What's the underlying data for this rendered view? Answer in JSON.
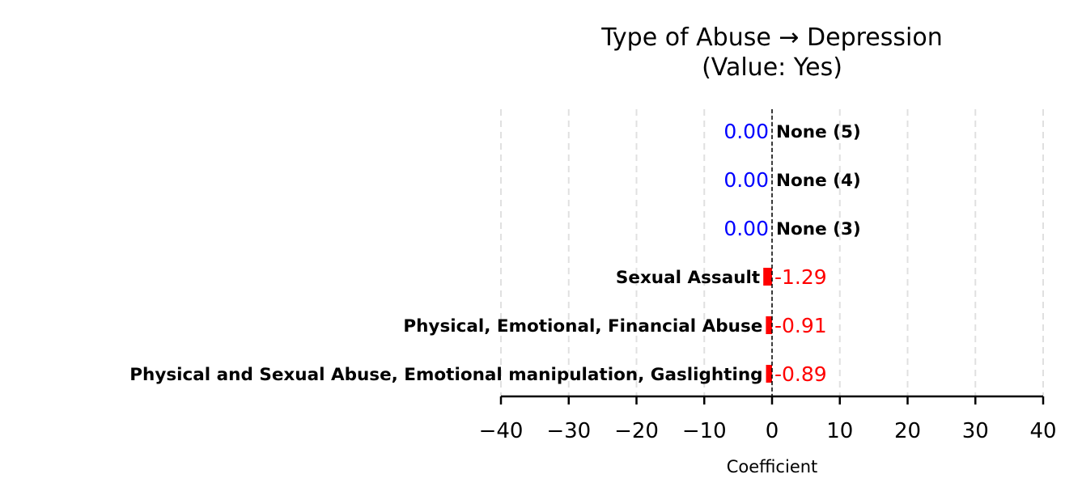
{
  "chart_data": {
    "type": "bar",
    "orientation": "horizontal",
    "title": "Type of Abuse → Depression",
    "subtitle": "(Value: Yes)",
    "xlabel": "Coefficient",
    "ylabel": "",
    "xlim": [
      -40,
      40
    ],
    "xticks": [
      -40,
      -30,
      -20,
      -10,
      0,
      10,
      20,
      30,
      40
    ],
    "xtick_labels": [
      "−40",
      "−30",
      "−20",
      "−10",
      "0",
      "10",
      "20",
      "30",
      "40"
    ],
    "grid": "vertical dashed",
    "zero_line": "dashed",
    "categories": [
      "Physical and Sexual Abuse, Emotional manipulation, Gaslighting",
      "Physical, Emotional, Financial Abuse",
      "Sexual Assault",
      "None (3)",
      "None (4)",
      "None (5)"
    ],
    "values": [
      -0.89,
      -0.91,
      -1.29,
      0.0,
      0.0,
      0.0
    ],
    "value_labels": [
      "-0.89",
      "-0.91",
      "-1.29",
      "0.00",
      "0.00",
      "0.00"
    ],
    "colors": {
      "negative": "#ff0000",
      "zero": "#0000ff",
      "grid": "#e0e0e0",
      "axis": "#000000"
    }
  }
}
